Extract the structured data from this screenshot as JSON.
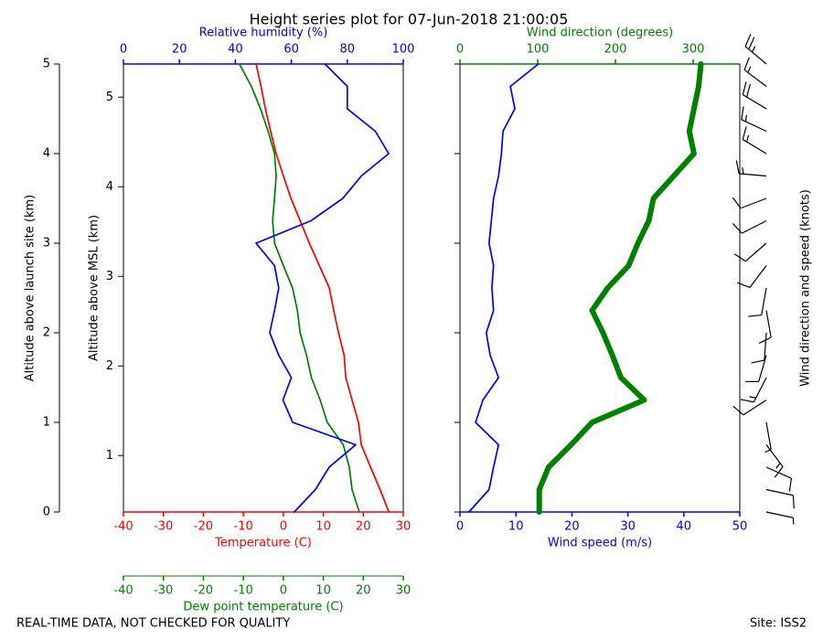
{
  "chart_data": [
    {
      "type": "profile",
      "title": "Height series plot for 07-Jun-2018 21:00:05",
      "ylabel": "Altitude above launch site (km)",
      "ylim": [
        0,
        5
      ],
      "yticks": [
        0,
        1,
        2,
        3,
        4,
        5
      ],
      "y2label": "Altitude above MSL (km)",
      "y2lim": [
        0.37,
        5.37
      ],
      "y2ticks": [
        1,
        2,
        3,
        4,
        5
      ],
      "altitude": [
        0,
        0.25,
        0.5,
        0.75,
        1.0,
        1.25,
        1.5,
        1.75,
        2.0,
        2.25,
        2.5,
        2.75,
        3.0,
        3.25,
        3.5,
        3.75,
        4.0,
        4.25,
        4.5,
        4.75,
        5.0
      ],
      "x_axes": [
        {
          "xlabel": "Temperature (C)",
          "xlim": [
            -40,
            30
          ],
          "xticks": [
            -40,
            -30,
            -20,
            -10,
            0,
            10,
            20,
            30
          ],
          "color": "#ff0000"
        },
        {
          "xlabel": "Dew point temperature (C)",
          "xlim": [
            -40,
            30
          ],
          "xticks": [
            -40,
            -30,
            -20,
            -10,
            0,
            10,
            20,
            30
          ],
          "color": "#008000"
        },
        {
          "xlabel": "Relative humidity (%)",
          "xlim": [
            0,
            100
          ],
          "xticks": [
            0,
            20,
            40,
            60,
            80,
            100
          ],
          "color": "#0000ff"
        }
      ],
      "series": [
        {
          "axis": 0,
          "color": "#ff0000",
          "values": [
            26.4,
            24.2,
            21.8,
            19.5,
            18.8,
            17.2,
            15.6,
            15.2,
            13.8,
            12.6,
            11.5,
            9.0,
            6.5,
            4.2,
            1.9,
            0.0,
            -1.8,
            -3.2,
            -4.5,
            -5.6,
            -6.8
          ]
        },
        {
          "axis": 1,
          "color": "#008000",
          "values": [
            19,
            17.2,
            16.5,
            15,
            11,
            9.2,
            7,
            5.8,
            4.2,
            3.5,
            2.3,
            0,
            -2.2,
            -2.7,
            -2.2,
            -1.8,
            -2.2,
            -3.8,
            -5.7,
            -8,
            -11
          ]
        },
        {
          "axis": 2,
          "color": "#0000ff",
          "values": [
            61,
            68.6,
            73.5,
            83,
            60.5,
            57,
            60,
            55.5,
            52.3,
            54,
            55.5,
            54,
            47.4,
            67,
            78.4,
            85,
            94.8,
            90,
            80,
            80,
            72
          ]
        }
      ]
    },
    {
      "type": "profile",
      "x_axes": [
        {
          "xlabel": "Wind speed (m/s)",
          "xlim": [
            0,
            50
          ],
          "xticks": [
            0,
            10,
            20,
            30,
            40,
            50
          ],
          "color": "#0000ff"
        },
        {
          "xlabel": "Wind direction (degrees)",
          "xlim": [
            0,
            360
          ],
          "xticks": [
            0,
            100,
            200,
            300
          ],
          "color": "#008000"
        }
      ],
      "series": [
        {
          "axis": 0,
          "color": "#0000ff",
          "values": [
            1.6,
            5.2,
            6,
            6.9,
            2.8,
            4.1,
            6.9,
            5.4,
            4.7,
            6,
            5.7,
            6,
            5.2,
            5.6,
            6,
            6.9,
            7.4,
            7.7,
            9.8,
            9,
            14
          ]
        },
        {
          "axis": 1,
          "color": "#008000",
          "values": [
            102,
            102,
            114,
            143,
            170,
            237,
            207,
            196,
            184,
            170,
            190,
            217,
            229,
            243,
            249,
            275,
            301,
            295,
            301,
            307,
            310
          ]
        }
      ]
    },
    {
      "type": "barbs",
      "ylabel": "Wind direction and speed (knots)",
      "color": "#000000"
    }
  ],
  "footer": {
    "left": "REAL-TIME DATA, NOT CHECKED FOR QUALITY",
    "right": "Site: ISS2"
  }
}
